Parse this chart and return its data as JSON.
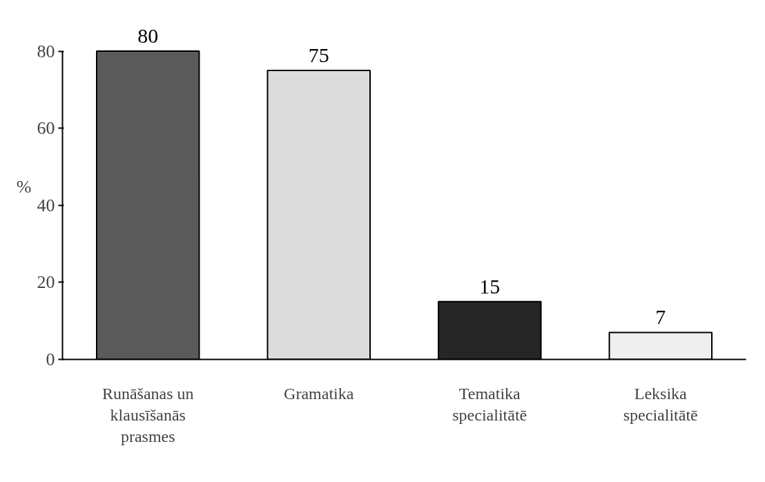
{
  "chart_data": {
    "type": "bar",
    "ylabel": "%",
    "categories": [
      "Runāšanas un klausīšanās prasmes",
      "Gramatika",
      "Tematika specialitātē",
      "Leksika specialitātē"
    ],
    "values": [
      80,
      75,
      15,
      7
    ],
    "colors": [
      "#5a5a5a",
      "#dcdcdc",
      "#262626",
      "#efefef"
    ],
    "ylim": [
      0,
      80
    ],
    "yticks": [
      0,
      20,
      40,
      60,
      80
    ],
    "data_labels": true,
    "grid": false
  }
}
